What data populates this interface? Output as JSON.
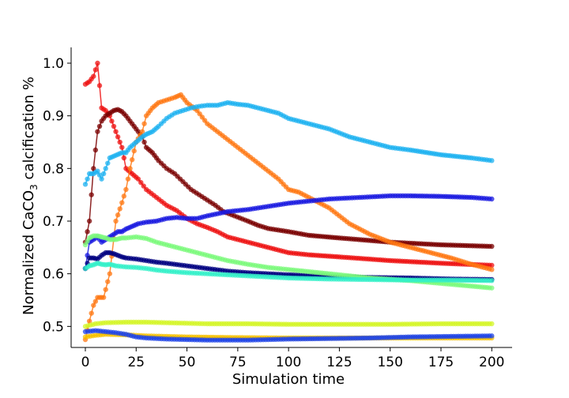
{
  "chart_data": {
    "type": "line",
    "title": "",
    "xlabel": "Simulation time",
    "ylabel_main": "Normalized CaCO",
    "ylabel_sub": "3",
    "ylabel_tail": " calcification %",
    "xlim": [
      -7,
      210
    ],
    "ylim": [
      0.46,
      1.03
    ],
    "xticks": [
      0,
      25,
      50,
      75,
      100,
      125,
      150,
      175,
      200
    ],
    "yticks": [
      0.5,
      0.6,
      0.7,
      0.8,
      0.9,
      1.0
    ],
    "xtick_labels": [
      "0",
      "25",
      "50",
      "75",
      "100",
      "125",
      "150",
      "175",
      "200"
    ],
    "ytick_labels": [
      "0.5",
      "0.6",
      "0.7",
      "0.8",
      "0.9",
      "1.0"
    ],
    "grid": false,
    "legend": "none",
    "series": [
      {
        "color": "#ee1111",
        "points": [
          [
            0,
            0.96
          ],
          [
            2,
            0.965
          ],
          [
            4,
            0.975
          ],
          [
            6,
            1.0
          ],
          [
            8,
            0.915
          ],
          [
            10,
            0.91
          ],
          [
            12,
            0.9
          ],
          [
            14,
            0.88
          ],
          [
            16,
            0.86
          ],
          [
            18,
            0.84
          ],
          [
            20,
            0.8
          ],
          [
            23,
            0.79
          ],
          [
            26,
            0.78
          ],
          [
            30,
            0.76
          ],
          [
            35,
            0.745
          ],
          [
            40,
            0.73
          ],
          [
            45,
            0.72
          ],
          [
            50,
            0.705
          ],
          [
            55,
            0.695
          ],
          [
            60,
            0.688
          ],
          [
            65,
            0.68
          ],
          [
            70,
            0.67
          ],
          [
            80,
            0.66
          ],
          [
            90,
            0.65
          ],
          [
            100,
            0.64
          ],
          [
            110,
            0.636
          ],
          [
            125,
            0.632
          ],
          [
            150,
            0.625
          ],
          [
            175,
            0.62
          ],
          [
            200,
            0.616
          ]
        ]
      },
      {
        "color": "#7a0000",
        "points": [
          [
            0,
            0.66
          ],
          [
            2,
            0.7
          ],
          [
            4,
            0.8
          ],
          [
            6,
            0.87
          ],
          [
            8,
            0.89
          ],
          [
            10,
            0.9
          ],
          [
            12,
            0.905
          ],
          [
            14,
            0.91
          ],
          [
            16,
            0.912
          ],
          [
            18,
            0.908
          ],
          [
            20,
            0.9
          ],
          [
            22,
            0.89
          ],
          [
            25,
            0.875
          ],
          [
            28,
            0.86
          ],
          [
            30,
            0.84
          ],
          [
            33,
            0.83
          ],
          [
            36,
            0.815
          ],
          [
            40,
            0.8
          ],
          [
            44,
            0.79
          ],
          [
            48,
            0.775
          ],
          [
            52,
            0.76
          ],
          [
            56,
            0.75
          ],
          [
            60,
            0.74
          ],
          [
            64,
            0.73
          ],
          [
            68,
            0.718
          ],
          [
            72,
            0.712
          ],
          [
            76,
            0.706
          ],
          [
            80,
            0.7
          ],
          [
            85,
            0.692
          ],
          [
            90,
            0.686
          ],
          [
            100,
            0.68
          ],
          [
            110,
            0.673
          ],
          [
            125,
            0.668
          ],
          [
            150,
            0.66
          ],
          [
            175,
            0.655
          ],
          [
            200,
            0.652
          ]
        ]
      },
      {
        "color": "#ff7711",
        "points": [
          [
            0,
            0.475
          ],
          [
            2,
            0.51
          ],
          [
            4,
            0.54
          ],
          [
            6,
            0.555
          ],
          [
            9,
            0.555
          ],
          [
            12,
            0.6
          ],
          [
            15,
            0.7
          ],
          [
            18,
            0.735
          ],
          [
            20,
            0.76
          ],
          [
            22,
            0.8
          ],
          [
            25,
            0.85
          ],
          [
            28,
            0.87
          ],
          [
            30,
            0.9
          ],
          [
            33,
            0.915
          ],
          [
            36,
            0.925
          ],
          [
            40,
            0.93
          ],
          [
            44,
            0.935
          ],
          [
            47,
            0.94
          ],
          [
            50,
            0.925
          ],
          [
            55,
            0.91
          ],
          [
            60,
            0.885
          ],
          [
            65,
            0.87
          ],
          [
            70,
            0.855
          ],
          [
            75,
            0.84
          ],
          [
            80,
            0.825
          ],
          [
            85,
            0.81
          ],
          [
            90,
            0.795
          ],
          [
            95,
            0.78
          ],
          [
            100,
            0.76
          ],
          [
            105,
            0.755
          ],
          [
            110,
            0.745
          ],
          [
            115,
            0.735
          ],
          [
            120,
            0.725
          ],
          [
            125,
            0.71
          ],
          [
            130,
            0.695
          ],
          [
            135,
            0.685
          ],
          [
            140,
            0.675
          ],
          [
            150,
            0.66
          ],
          [
            160,
            0.65
          ],
          [
            170,
            0.64
          ],
          [
            180,
            0.63
          ],
          [
            190,
            0.618
          ],
          [
            200,
            0.608
          ]
        ]
      },
      {
        "color": "#1eb2f0",
        "points": [
          [
            0,
            0.77
          ],
          [
            2,
            0.79
          ],
          [
            4,
            0.79
          ],
          [
            6,
            0.795
          ],
          [
            8,
            0.78
          ],
          [
            10,
            0.8
          ],
          [
            12,
            0.82
          ],
          [
            15,
            0.825
          ],
          [
            18,
            0.83
          ],
          [
            20,
            0.83
          ],
          [
            22,
            0.84
          ],
          [
            25,
            0.85
          ],
          [
            28,
            0.86
          ],
          [
            30,
            0.865
          ],
          [
            33,
            0.87
          ],
          [
            36,
            0.88
          ],
          [
            40,
            0.895
          ],
          [
            44,
            0.905
          ],
          [
            48,
            0.91
          ],
          [
            52,
            0.915
          ],
          [
            56,
            0.918
          ],
          [
            60,
            0.92
          ],
          [
            65,
            0.92
          ],
          [
            70,
            0.925
          ],
          [
            75,
            0.922
          ],
          [
            80,
            0.92
          ],
          [
            85,
            0.915
          ],
          [
            90,
            0.91
          ],
          [
            95,
            0.905
          ],
          [
            100,
            0.895
          ],
          [
            110,
            0.885
          ],
          [
            120,
            0.875
          ],
          [
            130,
            0.86
          ],
          [
            140,
            0.85
          ],
          [
            150,
            0.84
          ],
          [
            160,
            0.835
          ],
          [
            175,
            0.826
          ],
          [
            190,
            0.82
          ],
          [
            200,
            0.815
          ]
        ]
      },
      {
        "color": "#1a1ae0",
        "points": [
          [
            0,
            0.61
          ],
          [
            2,
            0.66
          ],
          [
            4,
            0.665
          ],
          [
            6,
            0.67
          ],
          [
            8,
            0.66
          ],
          [
            10,
            0.665
          ],
          [
            12,
            0.67
          ],
          [
            14,
            0.675
          ],
          [
            16,
            0.68
          ],
          [
            18,
            0.68
          ],
          [
            20,
            0.685
          ],
          [
            23,
            0.69
          ],
          [
            26,
            0.695
          ],
          [
            30,
            0.698
          ],
          [
            35,
            0.7
          ],
          [
            40,
            0.705
          ],
          [
            45,
            0.707
          ],
          [
            50,
            0.705
          ],
          [
            55,
            0.705
          ],
          [
            60,
            0.71
          ],
          [
            70,
            0.718
          ],
          [
            80,
            0.722
          ],
          [
            90,
            0.728
          ],
          [
            100,
            0.734
          ],
          [
            110,
            0.738
          ],
          [
            120,
            0.742
          ],
          [
            130,
            0.744
          ],
          [
            140,
            0.746
          ],
          [
            150,
            0.748
          ],
          [
            160,
            0.748
          ],
          [
            175,
            0.747
          ],
          [
            190,
            0.745
          ],
          [
            200,
            0.742
          ]
        ]
      },
      {
        "color": "#000080",
        "points": [
          [
            0,
            0.61
          ],
          [
            2,
            0.63
          ],
          [
            4,
            0.63
          ],
          [
            6,
            0.628
          ],
          [
            8,
            0.635
          ],
          [
            10,
            0.64
          ],
          [
            12,
            0.64
          ],
          [
            14,
            0.638
          ],
          [
            16,
            0.635
          ],
          [
            18,
            0.632
          ],
          [
            20,
            0.63
          ],
          [
            25,
            0.628
          ],
          [
            30,
            0.625
          ],
          [
            35,
            0.622
          ],
          [
            40,
            0.62
          ],
          [
            50,
            0.615
          ],
          [
            60,
            0.61
          ],
          [
            70,
            0.605
          ],
          [
            80,
            0.602
          ],
          [
            90,
            0.6
          ],
          [
            100,
            0.598
          ],
          [
            120,
            0.595
          ],
          [
            140,
            0.593
          ],
          [
            160,
            0.592
          ],
          [
            180,
            0.59
          ],
          [
            200,
            0.589
          ]
        ]
      },
      {
        "color": "#7bfa7b",
        "points": [
          [
            0,
            0.655
          ],
          [
            2,
            0.668
          ],
          [
            4,
            0.672
          ],
          [
            6,
            0.672
          ],
          [
            8,
            0.67
          ],
          [
            10,
            0.668
          ],
          [
            12,
            0.665
          ],
          [
            15,
            0.665
          ],
          [
            18,
            0.668
          ],
          [
            20,
            0.668
          ],
          [
            25,
            0.67
          ],
          [
            30,
            0.667
          ],
          [
            35,
            0.66
          ],
          [
            40,
            0.655
          ],
          [
            45,
            0.65
          ],
          [
            50,
            0.645
          ],
          [
            60,
            0.635
          ],
          [
            70,
            0.625
          ],
          [
            80,
            0.618
          ],
          [
            90,
            0.612
          ],
          [
            100,
            0.608
          ],
          [
            120,
            0.6
          ],
          [
            140,
            0.592
          ],
          [
            160,
            0.587
          ],
          [
            180,
            0.58
          ],
          [
            200,
            0.573
          ]
        ]
      },
      {
        "color": "#33f0c8",
        "points": [
          [
            0,
            0.61
          ],
          [
            2,
            0.615
          ],
          [
            4,
            0.617
          ],
          [
            6,
            0.62
          ],
          [
            8,
            0.618
          ],
          [
            10,
            0.617
          ],
          [
            12,
            0.618
          ],
          [
            15,
            0.615
          ],
          [
            20,
            0.613
          ],
          [
            25,
            0.612
          ],
          [
            30,
            0.61
          ],
          [
            35,
            0.607
          ],
          [
            40,
            0.605
          ],
          [
            50,
            0.602
          ],
          [
            60,
            0.6
          ],
          [
            70,
            0.598
          ],
          [
            80,
            0.596
          ],
          [
            90,
            0.594
          ],
          [
            100,
            0.592
          ],
          [
            120,
            0.59
          ],
          [
            140,
            0.589
          ],
          [
            160,
            0.588
          ],
          [
            180,
            0.588
          ],
          [
            200,
            0.587
          ]
        ]
      },
      {
        "color": "#d4f528",
        "points": [
          [
            0,
            0.5
          ],
          [
            5,
            0.505
          ],
          [
            10,
            0.507
          ],
          [
            20,
            0.508
          ],
          [
            30,
            0.508
          ],
          [
            40,
            0.507
          ],
          [
            50,
            0.506
          ],
          [
            60,
            0.505
          ],
          [
            80,
            0.505
          ],
          [
            100,
            0.504
          ],
          [
            120,
            0.504
          ],
          [
            150,
            0.504
          ],
          [
            175,
            0.505
          ],
          [
            200,
            0.505
          ]
        ]
      },
      {
        "color": "#f5c000",
        "points": [
          [
            0,
            0.48
          ],
          [
            5,
            0.483
          ],
          [
            10,
            0.485
          ],
          [
            20,
            0.484
          ],
          [
            30,
            0.482
          ],
          [
            40,
            0.481
          ],
          [
            50,
            0.48
          ],
          [
            70,
            0.479
          ],
          [
            100,
            0.478
          ],
          [
            130,
            0.478
          ],
          [
            160,
            0.478
          ],
          [
            200,
            0.478
          ]
        ]
      },
      {
        "color": "#1f44e8",
        "points": [
          [
            0,
            0.49
          ],
          [
            5,
            0.492
          ],
          [
            10,
            0.49
          ],
          [
            15,
            0.488
          ],
          [
            20,
            0.485
          ],
          [
            25,
            0.48
          ],
          [
            30,
            0.478
          ],
          [
            40,
            0.476
          ],
          [
            50,
            0.475
          ],
          [
            60,
            0.474
          ],
          [
            70,
            0.474
          ],
          [
            80,
            0.474
          ],
          [
            90,
            0.475
          ],
          [
            100,
            0.476
          ],
          [
            120,
            0.477
          ],
          [
            140,
            0.478
          ],
          [
            160,
            0.48
          ],
          [
            180,
            0.481
          ],
          [
            200,
            0.482
          ]
        ]
      }
    ]
  }
}
